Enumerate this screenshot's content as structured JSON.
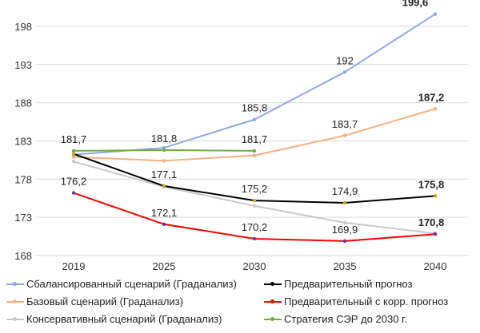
{
  "chart_data": {
    "type": "line",
    "categories": [
      "2019",
      "2025",
      "2030",
      "2035",
      "2040"
    ],
    "ylim": [
      168,
      199.6
    ],
    "yticks": [
      168,
      173,
      178,
      183,
      188,
      193,
      198
    ],
    "grid": true,
    "legend_placement": "bottom",
    "series": [
      {
        "name": "Сбалансированный сценарий (Граданализ)",
        "color": "#8faadc",
        "values": [
          181.2,
          182.1,
          185.8,
          192,
          199.6
        ],
        "labels": [
          null,
          null,
          "185,8",
          "192",
          "199,6"
        ],
        "bold_last": true
      },
      {
        "name": "Базовый сценарий (Граданализ)",
        "color": "#f4b183",
        "values": [
          180.9,
          180.4,
          181.1,
          183.7,
          187.2
        ],
        "labels": [
          null,
          null,
          null,
          "183,7",
          "187,2"
        ],
        "bold_last": true
      },
      {
        "name": "Консервативный сценарий (Граданализ)",
        "color": "#c9c9c9",
        "values": [
          180.3,
          177.0,
          174.5,
          172.3,
          170.9
        ],
        "labels": [
          null,
          null,
          null,
          null,
          null
        ]
      },
      {
        "name": "Предварительный прогноз",
        "color": "#000000",
        "values": [
          181.3,
          177.1,
          175.2,
          174.9,
          175.8
        ],
        "labels": [
          null,
          "177,1",
          "175,2",
          "174,9",
          "175,8"
        ],
        "bold_last": true
      },
      {
        "name": "Предварительный с корр. прогноз",
        "color": "#ff0000",
        "values": [
          176.2,
          172.1,
          170.2,
          169.9,
          170.8
        ],
        "labels": [
          "176,2",
          "172,1",
          "170,2",
          "169,9",
          "170,8"
        ],
        "bold_last": true
      },
      {
        "name": "Стратегия СЭР до 2030 г.",
        "color": "#70ad47",
        "values": [
          181.7,
          181.8,
          181.7,
          null,
          null
        ],
        "labels": [
          "181,7",
          "181,8",
          "181,7",
          null,
          null
        ]
      }
    ]
  }
}
